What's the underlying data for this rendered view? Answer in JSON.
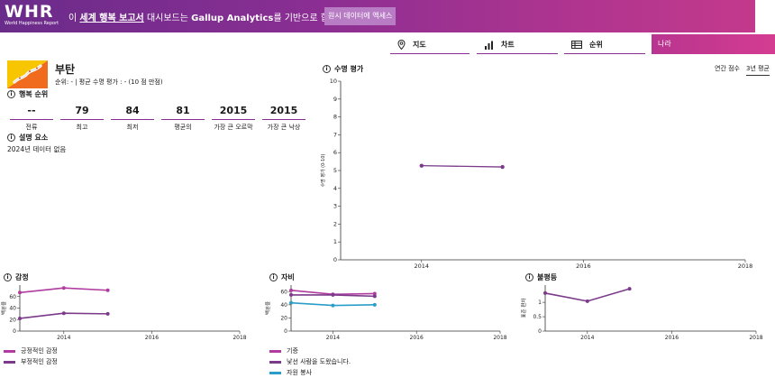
{
  "banner": {
    "logo_mark": "WHR",
    "logo_sub": "World Happiness Report",
    "text_prefix": "이 ",
    "text_link": "세계 행복 보고서",
    "text_mid": " 대시보드는 ",
    "text_bold": "Gallup Analytics",
    "text_suffix": "를 기반으로 합니다.",
    "text_sup": "①",
    "button_label": "원시 데이터에 액세스"
  },
  "nav": {
    "tabs": [
      {
        "label": "지도",
        "icon": "map-pin-icon"
      },
      {
        "label": "차트",
        "icon": "bar-chart-icon"
      },
      {
        "label": "순위",
        "icon": "table-icon"
      }
    ],
    "country_select": "나라"
  },
  "country": {
    "name": "부탄",
    "rank_text": "순위: - | 평균 수명 평가 : - (10 점 만점)"
  },
  "happiness_rank": {
    "title": "행복 순위",
    "stats": [
      {
        "value": "--",
        "label": "전류"
      },
      {
        "value": "79",
        "label": "최고"
      },
      {
        "value": "84",
        "label": "최저"
      },
      {
        "value": "81",
        "label": "평균의"
      },
      {
        "value": "2015",
        "label": "가장 큰 오르막"
      },
      {
        "value": "2015",
        "label": "가장 큰 낙상"
      }
    ]
  },
  "explanation": {
    "title": "설명 요소",
    "note": "2024년 데이터 없음"
  },
  "life_eval": {
    "title": "수명 평가",
    "toggle_annual": "연간 점수",
    "toggle_3yr": "3년 평균"
  },
  "emotion": {
    "title": "감정",
    "legend": [
      "긍정적인 감정",
      "부정적인 감정"
    ]
  },
  "generosity": {
    "title": "자비",
    "legend": [
      "기증",
      "낯선 사람을 도왔습니다.",
      "자원 봉사"
    ]
  },
  "inequality": {
    "title": "불평등"
  },
  "colors": {
    "brand_purple": "#8a2e93",
    "line_purple": "#7b3a8a",
    "line_magenta": "#b03ca0",
    "line_cyan": "#2a9ec9"
  },
  "chart_data": [
    {
      "type": "line",
      "title": "수명 평가",
      "ylabel": "수명 평가 (0-10)",
      "ylim": [
        0,
        10
      ],
      "xlim": [
        2013,
        2018
      ],
      "x_ticks": [
        2014,
        2016,
        2018
      ],
      "y_ticks": [
        0,
        1,
        2,
        3,
        4,
        5,
        6,
        7,
        8,
        9,
        10
      ],
      "series": [
        {
          "x": [
            2014,
            2015
          ],
          "values": [
            5.27,
            5.2
          ]
        }
      ]
    },
    {
      "type": "line",
      "title": "감정",
      "ylabel": "백분율",
      "ylim": [
        0,
        80
      ],
      "xlim": [
        2013,
        2018
      ],
      "x_ticks": [
        2014,
        2016,
        2018
      ],
      "y_ticks": [
        0,
        20,
        40,
        60
      ],
      "legend": "bottom-left",
      "series": [
        {
          "name": "긍정적인 감정",
          "x": [
            2013,
            2014,
            2015
          ],
          "values": [
            67,
            75,
            71
          ]
        },
        {
          "name": "부정적인 감정",
          "x": [
            2013,
            2014,
            2015
          ],
          "values": [
            22,
            31,
            30
          ]
        }
      ]
    },
    {
      "type": "line",
      "title": "자비",
      "ylabel": "백분율",
      "ylim": [
        0,
        70
      ],
      "xlim": [
        2013,
        2018
      ],
      "x_ticks": [
        2014,
        2016,
        2018
      ],
      "y_ticks": [
        0,
        20,
        40,
        60
      ],
      "legend": "bottom-left",
      "series": [
        {
          "name": "기증",
          "x": [
            2013,
            2014,
            2015
          ],
          "values": [
            62,
            56,
            57
          ]
        },
        {
          "name": "낯선 사람을 도왔습니다.",
          "x": [
            2013,
            2014,
            2015
          ],
          "values": [
            55,
            55,
            53
          ]
        },
        {
          "name": "자원 봉사",
          "x": [
            2013,
            2014,
            2015
          ],
          "values": [
            43,
            39,
            40
          ]
        }
      ]
    },
    {
      "type": "line",
      "title": "불평등",
      "ylabel": "표준 편차",
      "ylim": [
        0,
        1.6
      ],
      "xlim": [
        2013,
        2018
      ],
      "x_ticks": [
        2014,
        2016,
        2018
      ],
      "y_ticks": [
        0,
        0.5,
        1.0
      ],
      "series": [
        {
          "x": [
            2013,
            2014,
            2015
          ],
          "values": [
            1.32,
            1.04,
            1.47
          ]
        }
      ]
    }
  ]
}
